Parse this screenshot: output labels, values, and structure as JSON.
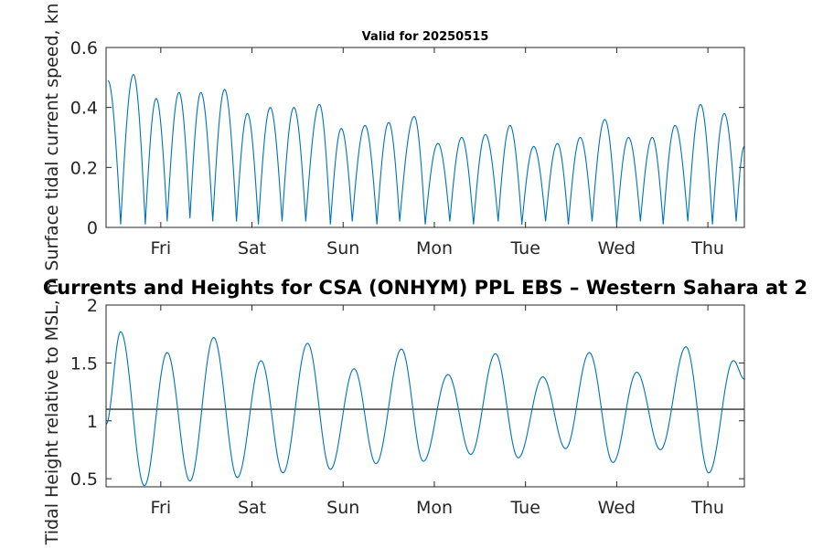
{
  "figure": {
    "title_top": "Valid for 20250515",
    "title_bottom": "Currents and Heights for CSA (ONHYM) PPL EBS  – Western Sahara at 2",
    "reference_level": 1.1,
    "line_color": "#0072BD",
    "reference_color": "#000000"
  },
  "chart_data": [
    {
      "type": "line",
      "title": "Valid for 20250515",
      "xlabel": "",
      "ylabel": "Surface tidal current speed, kn",
      "ylim": [
        0,
        0.6
      ],
      "yticks": [
        0,
        0.2,
        0.4,
        0.6
      ],
      "ytick_labels": [
        "0",
        "0.2",
        "0.4",
        "0.6"
      ],
      "xlim": [
        0,
        7
      ],
      "xticks": [
        0.6,
        1.6,
        2.6,
        3.6,
        4.6,
        5.6,
        6.6
      ],
      "xtick_labels": [
        "Fri",
        "Sat",
        "Sun",
        "Mon",
        "Tue",
        "Wed",
        "Thu"
      ],
      "grid": false,
      "peaks": [
        [
          0.02,
          0.49
        ],
        [
          0.3,
          0.51
        ],
        [
          0.55,
          0.43
        ],
        [
          0.8,
          0.45
        ],
        [
          1.04,
          0.45
        ],
        [
          1.3,
          0.46
        ],
        [
          1.55,
          0.38
        ],
        [
          1.8,
          0.4
        ],
        [
          2.06,
          0.4
        ],
        [
          2.34,
          0.41
        ],
        [
          2.58,
          0.33
        ],
        [
          2.84,
          0.34
        ],
        [
          3.1,
          0.35
        ],
        [
          3.38,
          0.37
        ],
        [
          3.64,
          0.28
        ],
        [
          3.9,
          0.3
        ],
        [
          4.16,
          0.31
        ],
        [
          4.43,
          0.34
        ],
        [
          4.69,
          0.27
        ],
        [
          4.95,
          0.28
        ],
        [
          5.2,
          0.3
        ],
        [
          5.47,
          0.36
        ],
        [
          5.73,
          0.3
        ],
        [
          5.99,
          0.3
        ],
        [
          6.24,
          0.34
        ],
        [
          6.52,
          0.41
        ],
        [
          6.78,
          0.38
        ],
        [
          7.0,
          0.27
        ]
      ],
      "troughs": [
        [
          0.16,
          0.01
        ],
        [
          0.43,
          0.01
        ],
        [
          0.67,
          0.02
        ],
        [
          0.92,
          0.03
        ],
        [
          1.17,
          0.02
        ],
        [
          1.43,
          0.02
        ],
        [
          1.67,
          0.01
        ],
        [
          1.93,
          0.02
        ],
        [
          2.19,
          0.02
        ],
        [
          2.46,
          0.01
        ],
        [
          2.7,
          0.02
        ],
        [
          2.97,
          0.01
        ],
        [
          3.22,
          0.02
        ],
        [
          3.5,
          0.01
        ],
        [
          3.77,
          0.02
        ],
        [
          4.03,
          0.01
        ],
        [
          4.3,
          0.02
        ],
        [
          4.56,
          0.01
        ],
        [
          4.82,
          0.02
        ],
        [
          5.07,
          0.01
        ],
        [
          5.33,
          0.02
        ],
        [
          5.6,
          0.01
        ],
        [
          5.86,
          0.02
        ],
        [
          6.11,
          0.01
        ],
        [
          6.38,
          0.02
        ],
        [
          6.65,
          0.01
        ],
        [
          6.91,
          0.02
        ]
      ]
    },
    {
      "type": "line",
      "title": "Currents and Heights for CSA (ONHYM) PPL EBS  – Western Sahara at 2",
      "xlabel": "",
      "ylabel": "Tidal Height relative to MSL, m",
      "ylim": [
        0.43,
        2
      ],
      "yticks": [
        0.5,
        1,
        1.5,
        2
      ],
      "ytick_labels": [
        "0.5",
        "1",
        "1.5",
        "2"
      ],
      "xlim": [
        0,
        7
      ],
      "xticks": [
        0.6,
        1.6,
        2.6,
        3.6,
        4.6,
        5.6,
        6.6
      ],
      "xtick_labels": [
        "Fri",
        "Sat",
        "Sun",
        "Mon",
        "Tue",
        "Wed",
        "Thu"
      ],
      "grid": false,
      "reference_line": 1.1,
      "extrema": [
        [
          0.0,
          0.97
        ],
        [
          0.16,
          1.77
        ],
        [
          0.42,
          0.44
        ],
        [
          0.67,
          1.59
        ],
        [
          0.92,
          0.48
        ],
        [
          1.18,
          1.72
        ],
        [
          1.44,
          0.51
        ],
        [
          1.7,
          1.52
        ],
        [
          1.94,
          0.55
        ],
        [
          2.21,
          1.67
        ],
        [
          2.46,
          0.58
        ],
        [
          2.72,
          1.45
        ],
        [
          2.96,
          0.63
        ],
        [
          3.24,
          1.62
        ],
        [
          3.48,
          0.65
        ],
        [
          3.75,
          1.4
        ],
        [
          4.0,
          0.71
        ],
        [
          4.27,
          1.58
        ],
        [
          4.52,
          0.68
        ],
        [
          4.79,
          1.38
        ],
        [
          5.04,
          0.76
        ],
        [
          5.3,
          1.59
        ],
        [
          5.56,
          0.64
        ],
        [
          5.82,
          1.42
        ],
        [
          6.08,
          0.75
        ],
        [
          6.36,
          1.64
        ],
        [
          6.61,
          0.55
        ],
        [
          6.88,
          1.52
        ],
        [
          7.0,
          1.36
        ]
      ]
    }
  ]
}
